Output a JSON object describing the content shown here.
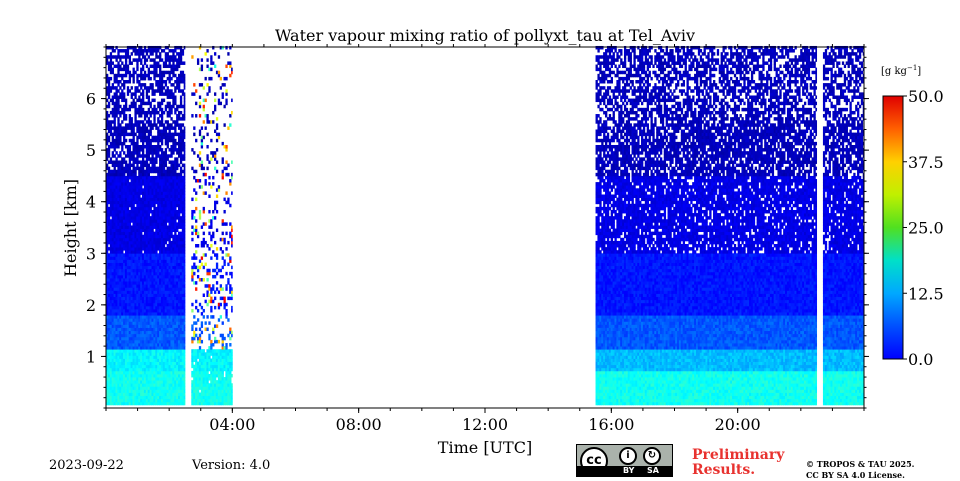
{
  "chart_data": {
    "type": "heatmap",
    "title": "Water vapour mixing ratio of pollyxt_tau at Tel_Aviv",
    "xlabel": "Time [UTC]",
    "ylabel": "Height [km]",
    "x_ticks": [
      "04:00",
      "08:00",
      "12:00",
      "16:00",
      "20:00"
    ],
    "x_tick_hours": [
      4,
      8,
      12,
      16,
      20
    ],
    "xlim_hours": [
      0,
      24
    ],
    "y_ticks": [
      1,
      2,
      3,
      4,
      5,
      6
    ],
    "ylim_km": [
      0,
      7
    ],
    "colorbar": {
      "unit": "[g kg",
      "unit_exp": "−1",
      "unit_close": "]",
      "ticks": [
        "0.0",
        "12.5",
        "25.0",
        "37.5",
        "50.0"
      ],
      "range": [
        0,
        50
      ],
      "colormap": "jet"
    },
    "data_periods_hours": [
      [
        0,
        2.5
      ],
      [
        2.7,
        4.0
      ],
      [
        15.5,
        22.5
      ],
      [
        22.7,
        24
      ]
    ],
    "gaps_hours": [
      [
        2.5,
        2.7
      ],
      [
        4.0,
        15.5
      ],
      [
        22.5,
        22.7
      ]
    ],
    "typical_profile": [
      {
        "height_km": 0.5,
        "value": 18
      },
      {
        "height_km": 1.5,
        "value": 7
      },
      {
        "height_km": 3.0,
        "value": 5
      },
      {
        "height_km": 5.0,
        "value": 3
      },
      {
        "height_km": 6.5,
        "value": 2
      }
    ]
  },
  "footer": {
    "date": "2023-09-22",
    "version": "Version: 4.0",
    "preliminary_line1": "Preliminary",
    "preliminary_line2": "Results.",
    "copyright_line1": "© TROPOS & TAU 2025.",
    "copyright_line2": "CC BY SA 4.0 License.",
    "license_by": "BY",
    "license_sa": "SA",
    "license_cc": "cc"
  }
}
